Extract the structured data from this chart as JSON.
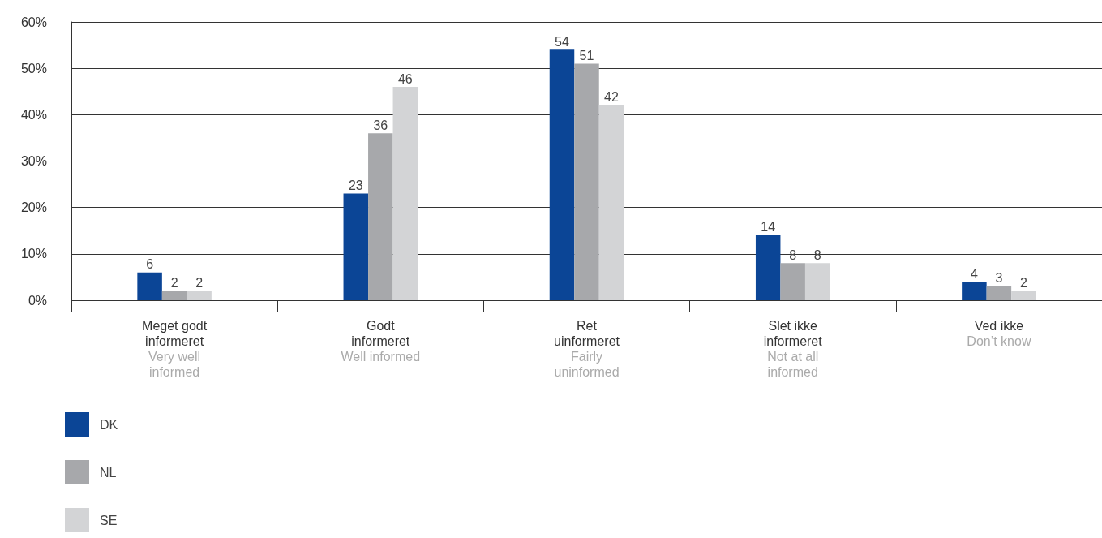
{
  "chart_data": {
    "type": "bar",
    "categories": [
      "Meget godt informeret\nVery well informed",
      "Godt informeret\nWell informed",
      "Ret uinformeret\nFairly uninformed",
      "Slet ikke informeret\nNot at all informed",
      "Ved ikke\nDon’t know"
    ],
    "series": [
      {
        "name": "DK",
        "color": "#0b4596",
        "values": [
          6,
          23,
          54,
          14,
          4
        ]
      },
      {
        "name": "NL",
        "color": "#a7a8ab",
        "values": [
          2,
          36,
          51,
          8,
          3
        ]
      },
      {
        "name": "SE",
        "color": "#d3d4d6",
        "values": [
          2,
          46,
          42,
          8,
          2
        ]
      }
    ],
    "ylim": [
      0,
      60
    ],
    "yticks": [
      {
        "value": 0,
        "label": "0%"
      },
      {
        "value": 10,
        "label": "10%"
      },
      {
        "value": 20,
        "label": "20%"
      },
      {
        "value": 30,
        "label": "30%"
      },
      {
        "value": 40,
        "label": "40%"
      },
      {
        "value": 50,
        "label": "50%"
      },
      {
        "value": 60,
        "label": "60%"
      }
    ],
    "grid": "y",
    "legend": "bottom left",
    "data_labels": true
  }
}
